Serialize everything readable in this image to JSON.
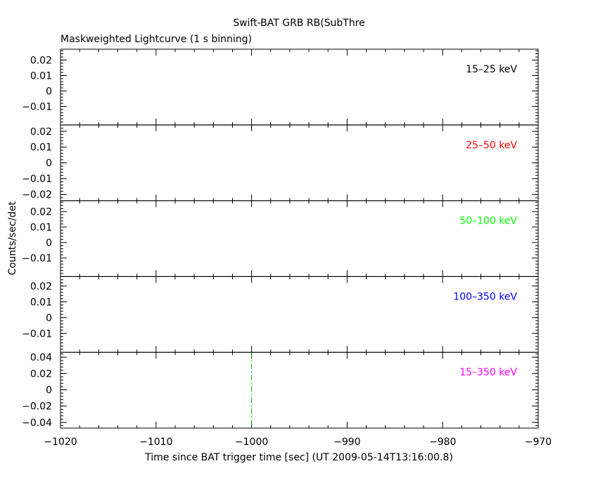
{
  "chart_data": {
    "type": "line",
    "title": "Swift-BAT GRB RB(SubThre",
    "subtitle": "Maskweighted Lightcurve (1 s binning)",
    "xlabel": "Time since BAT trigger time [sec] (UT 2009-05-14T13:16:00.8)",
    "ylabel": "Counts/sec/det",
    "xlim": [
      -1020,
      -970
    ],
    "x_ticks": [
      -1020,
      -1010,
      -1000,
      -990,
      -980,
      -970
    ],
    "x_tick_labels": [
      "−1020",
      "−1010",
      "−1000",
      "−990",
      "−980",
      "−970"
    ],
    "grid": false,
    "panels": [
      {
        "name": "15–25 keV",
        "color": "#000000",
        "ylim": [
          -0.022,
          0.027
        ],
        "y_ticks": [
          -0.01,
          0,
          0.01,
          0.02
        ],
        "y_tick_labels": [
          "−0.01",
          "0",
          "0.01",
          "0.02"
        ]
      },
      {
        "name": "25–50 keV",
        "color": "#ff0000",
        "ylim": [
          -0.024,
          0.024
        ],
        "y_ticks": [
          -0.02,
          -0.01,
          0,
          0.01,
          0.02
        ],
        "y_tick_labels": [
          "−0.02",
          "−0.01",
          "0",
          "0.01",
          "0.02"
        ]
      },
      {
        "name": "50–100 keV",
        "color": "#00ff00",
        "ylim": [
          -0.022,
          0.027
        ],
        "y_ticks": [
          -0.01,
          0,
          0.01,
          0.02
        ],
        "y_tick_labels": [
          "−0.01",
          "0",
          "0.01",
          "0.02"
        ]
      },
      {
        "name": "100–350 keV",
        "color": "#0000ff",
        "ylim": [
          -0.022,
          0.026
        ],
        "y_ticks": [
          -0.01,
          0,
          0.01,
          0.02
        ],
        "y_tick_labels": [
          "−0.01",
          "0",
          "0.01",
          "0.02"
        ]
      },
      {
        "name": "15–350 keV",
        "color": "#ff00ff",
        "ylim": [
          -0.047,
          0.046
        ],
        "y_ticks": [
          -0.04,
          -0.02,
          0,
          0.02,
          0.04
        ],
        "y_tick_labels": [
          "−0.04",
          "−0.02",
          "0",
          "0.02",
          "0.04"
        ]
      }
    ],
    "annotations": [
      {
        "type": "vertical_line",
        "panel": 4,
        "x": -1000,
        "color": "#00aa00",
        "style": "dash-dot"
      }
    ]
  }
}
